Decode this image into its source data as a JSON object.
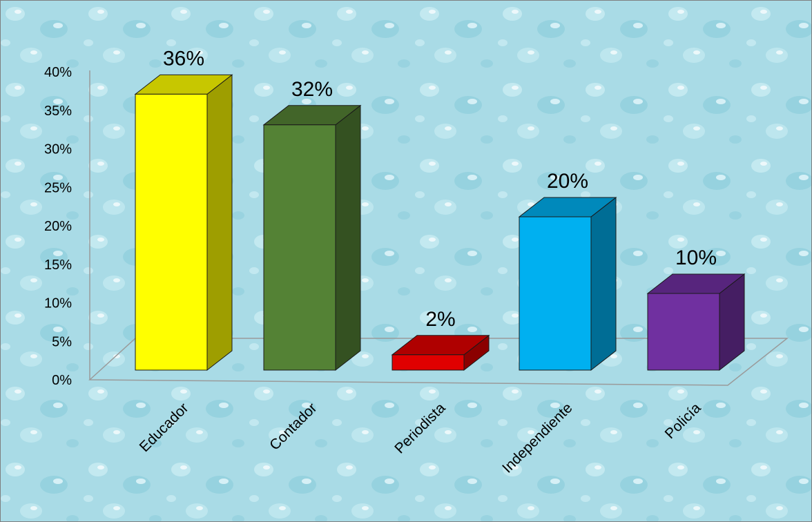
{
  "chart_data": {
    "type": "bar",
    "style": "3d-column",
    "categories": [
      "Educador",
      "Contador",
      "Periodista",
      "Independiente",
      "Policía"
    ],
    "values": [
      36,
      32,
      2,
      20,
      10
    ],
    "value_labels": [
      "36%",
      "32%",
      "2%",
      "20%",
      "10%"
    ],
    "bar_colors": [
      "#ffff00",
      "#548235",
      "#e00000",
      "#00b0f0",
      "#7030a0"
    ],
    "ylim": [
      0,
      40
    ],
    "y_ticks": [
      "0%",
      "5%",
      "10%",
      "15%",
      "20%",
      "25%",
      "30%",
      "35%",
      "40%"
    ],
    "grid": false,
    "legend": "none",
    "background": "#a9dbe6",
    "title": "",
    "xlabel": "",
    "ylabel": ""
  }
}
